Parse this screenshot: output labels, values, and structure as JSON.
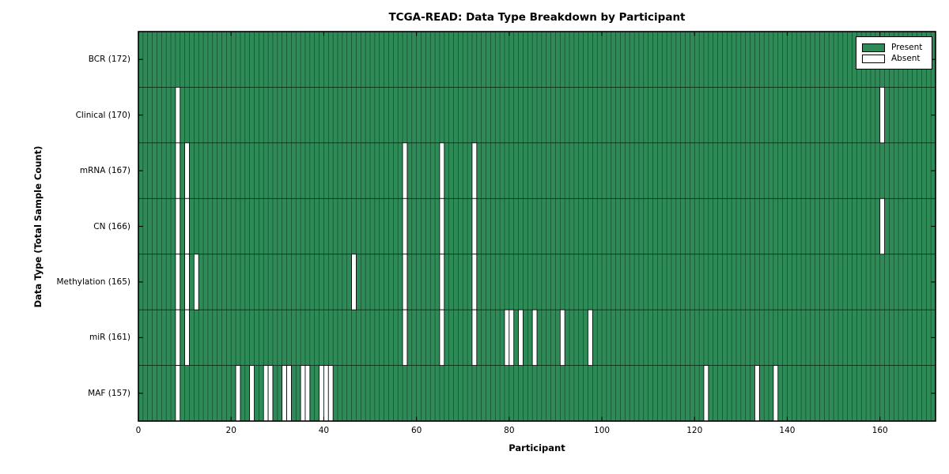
{
  "title": "TCGA-READ: Data Type Breakdown by Participant",
  "colors": {
    "present": "#2e8b57",
    "absent": "#ffffff",
    "cell_edge": "#0a331e",
    "row_divider": "#06250f",
    "axis": "#000000",
    "background": "#ffffff"
  },
  "chart_data": {
    "type": "heatmap",
    "title": "TCGA-READ: Data Type Breakdown by Participant",
    "xlabel": "Participant",
    "ylabel": "Data Type (Total Sample Count)",
    "n_participants": 172,
    "x_ticks": [
      0,
      20,
      40,
      60,
      80,
      100,
      120,
      140,
      160
    ],
    "xlim": [
      0,
      172
    ],
    "grid": false,
    "legend_position": "upper right",
    "value_encoding": {
      "present": 1,
      "absent": 0
    },
    "rows": [
      {
        "label": "BCR (172)",
        "data_type": "BCR",
        "total": 172,
        "absent_participants": []
      },
      {
        "label": "Clinical (170)",
        "data_type": "Clinical",
        "total": 170,
        "absent_participants": [
          8,
          160
        ]
      },
      {
        "label": "mRNA (167)",
        "data_type": "mRNA",
        "total": 167,
        "absent_participants": [
          8,
          10,
          57,
          65,
          72
        ]
      },
      {
        "label": "CN (166)",
        "data_type": "CN",
        "total": 166,
        "absent_participants": [
          8,
          10,
          57,
          65,
          72,
          160
        ]
      },
      {
        "label": "Methylation (165)",
        "data_type": "Methylation",
        "total": 165,
        "absent_participants": [
          8,
          10,
          12,
          46,
          57,
          65,
          72
        ]
      },
      {
        "label": "miR (161)",
        "data_type": "miR",
        "total": 161,
        "absent_participants": [
          8,
          10,
          57,
          65,
          72,
          79,
          80,
          82,
          85,
          91,
          97
        ]
      },
      {
        "label": "MAF (157)",
        "data_type": "MAF",
        "total": 157,
        "absent_participants": [
          8,
          21,
          24,
          27,
          28,
          31,
          32,
          35,
          36,
          39,
          40,
          41,
          122,
          133,
          137
        ]
      }
    ],
    "legend": [
      {
        "label": "Present",
        "color": "#2e8b57"
      },
      {
        "label": "Absent",
        "color": "#ffffff"
      }
    ]
  }
}
